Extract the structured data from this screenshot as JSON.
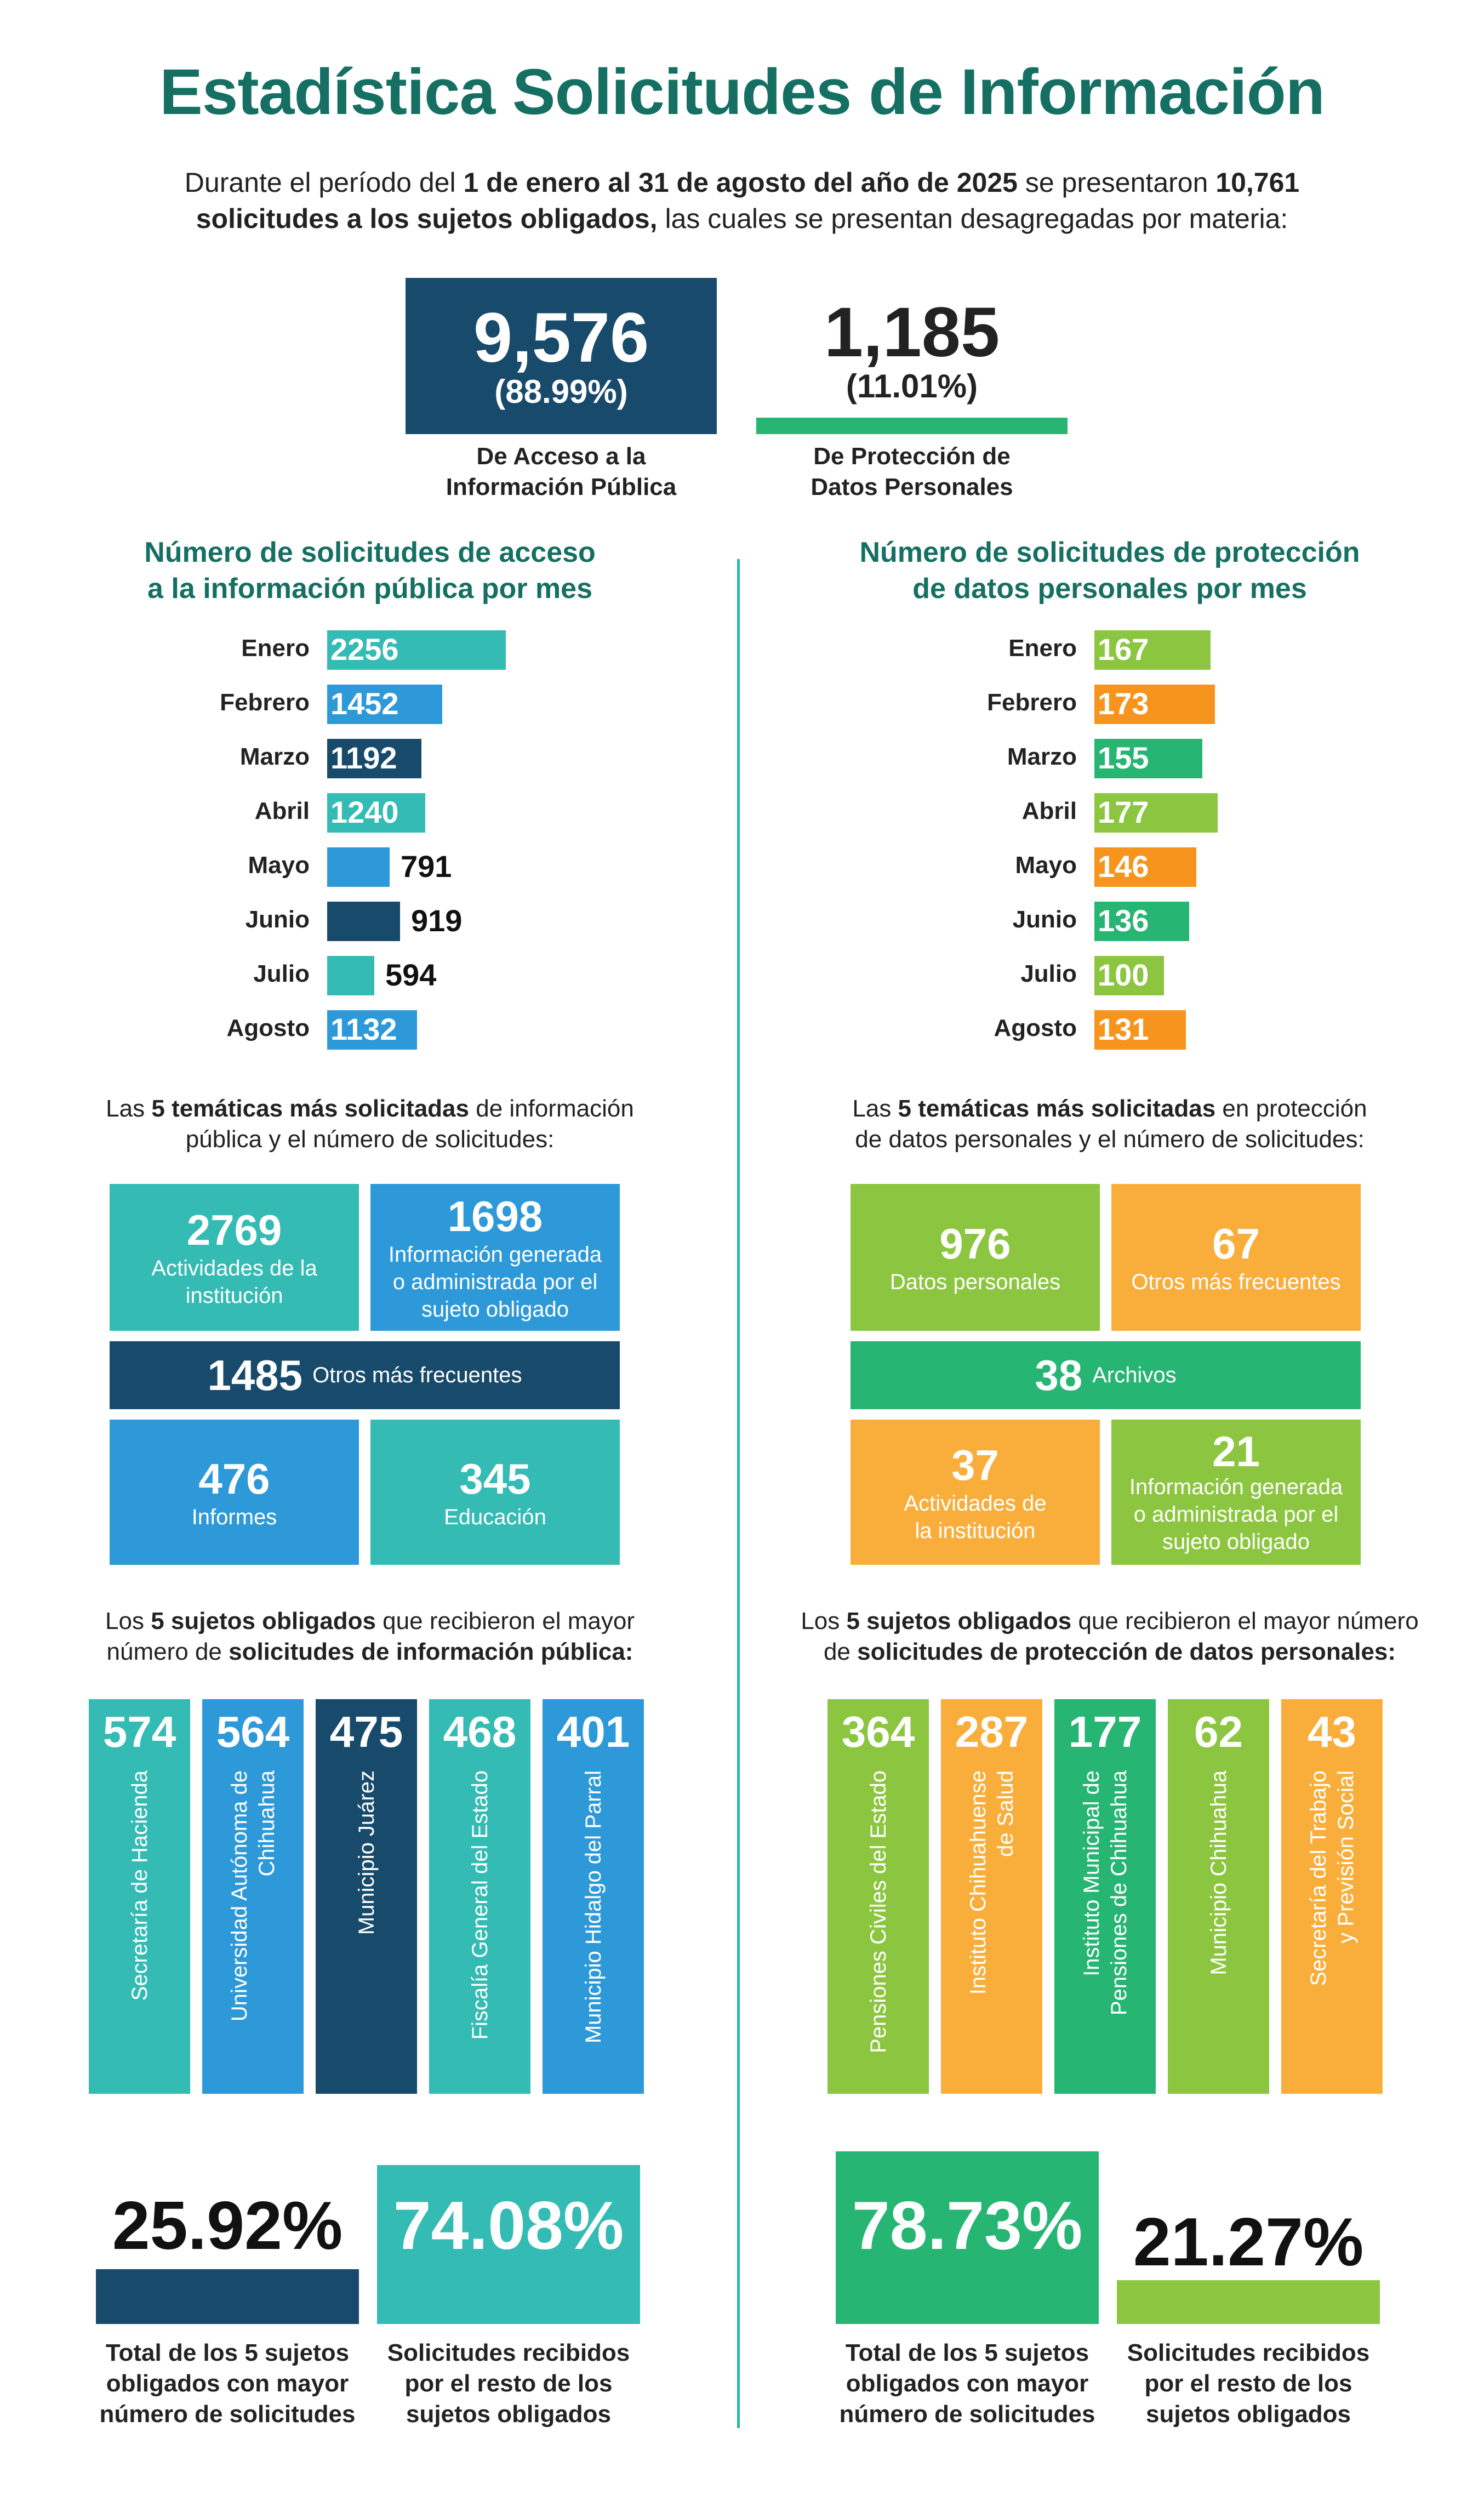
{
  "title": "Estadística Solicitudes de Información",
  "intro": {
    "p1": "Durante el período del ",
    "b1": "1 de enero al 31 de agosto del año de 2025",
    "p2": " se presentaron ",
    "b2": "10,761",
    "b3": "solicitudes a los sujetos obligados,",
    "p3": " las cuales se presentan desagregadas por materia:"
  },
  "totals": {
    "access": {
      "value": "9,576",
      "pct": "(88.99%)",
      "label_l1": "De Acceso a la",
      "label_l2": "Información Pública",
      "color": "#174a6b"
    },
    "protection": {
      "value": "1,185",
      "pct": "(11.01%)",
      "label_l1": "De Protección de",
      "label_l2": "Datos Personales",
      "color": "#26b573"
    }
  },
  "access_monthly": {
    "title_l1": "Número de solicitudes de acceso",
    "title_l2": "a la información pública por mes"
  },
  "protection_monthly": {
    "title_l1": "Número de solicitudes de protección",
    "title_l2": "de datos personales por mes"
  },
  "chart_data": [
    {
      "type": "bar",
      "title": "Número de solicitudes de acceso a la información pública por mes",
      "categories": [
        "Enero",
        "Febrero",
        "Marzo",
        "Abril",
        "Mayo",
        "Junio",
        "Julio",
        "Agosto"
      ],
      "values": [
        2256,
        1452,
        1192,
        1240,
        791,
        919,
        594,
        1132
      ],
      "colors": [
        "#33bbb4",
        "#2e99d9",
        "#174a6b",
        "#33bbb4",
        "#2e99d9",
        "#174a6b",
        "#33bbb4",
        "#2e99d9"
      ],
      "orientation": "horizontal",
      "xlim": [
        0,
        2256
      ]
    },
    {
      "type": "bar",
      "title": "Número de solicitudes de protección de datos personales por mes",
      "categories": [
        "Enero",
        "Febrero",
        "Marzo",
        "Abril",
        "Mayo",
        "Junio",
        "Julio",
        "Agosto"
      ],
      "values": [
        167,
        173,
        155,
        177,
        146,
        136,
        100,
        131
      ],
      "colors": [
        "#8cc640",
        "#f7941e",
        "#26b573",
        "#8cc640",
        "#f7941e",
        "#26b573",
        "#8cc640",
        "#f7941e"
      ],
      "orientation": "horizontal",
      "xlim": [
        0,
        177
      ]
    }
  ],
  "access_topics": {
    "intro_pre": "Las ",
    "intro_bold": "5 temáticas más solicitadas",
    "intro_post": " de información pública y el número de solicitudes:",
    "tiles": [
      {
        "value": "2769",
        "label": "Actividades de la institución",
        "color": "#33bbb4"
      },
      {
        "value": "1698",
        "label": "Información generada o administrada por el sujeto obligado",
        "color": "#2e99d9"
      },
      {
        "value": "1485",
        "label": "Otros más frecuentes",
        "color": "#174a6b"
      },
      {
        "value": "476",
        "label": "Informes",
        "color": "#2e99d9"
      },
      {
        "value": "345",
        "label": "Educación",
        "color": "#33bbb4"
      }
    ]
  },
  "protection_topics": {
    "intro_pre": "Las ",
    "intro_bold": "5 temáticas más solicitadas",
    "intro_post": " en protección de datos personales y el número de solicitudes:",
    "tiles": [
      {
        "value": "976",
        "label": "Datos personales",
        "color": "#8cc640"
      },
      {
        "value": "67",
        "label": "Otros más frecuentes",
        "color": "#f9ae3c"
      },
      {
        "value": "38",
        "label": "Archivos",
        "color": "#26b573"
      },
      {
        "value": "37",
        "label": "Actividades de la institución",
        "color": "#f9ae3c"
      },
      {
        "value": "21",
        "label": "Información generada o administrada por el sujeto obligado",
        "color": "#8cc640"
      }
    ]
  },
  "access_entities": {
    "intro_pre": "Los ",
    "intro_bold1": "5 sujetos obligados",
    "intro_mid": " que recibieron el mayor número de ",
    "intro_bold2": "solicitudes de información pública:",
    "items": [
      {
        "value": "574",
        "name_l1": "Secretaría de Hacienda",
        "name_l2": "",
        "color": "#33bbb4"
      },
      {
        "value": "564",
        "name_l1": "Universidad Autónoma de",
        "name_l2": "Chihuahua",
        "color": "#2e99d9"
      },
      {
        "value": "475",
        "name_l1": "Municipio Juárez",
        "name_l2": "",
        "color": "#174a6b"
      },
      {
        "value": "468",
        "name_l1": "Fiscalía General del Estado",
        "name_l2": "",
        "color": "#33bbb4"
      },
      {
        "value": "401",
        "name_l1": "Municipio Hidalgo del Parral",
        "name_l2": "",
        "color": "#2e99d9"
      }
    ]
  },
  "protection_entities": {
    "intro_pre": "Los ",
    "intro_bold1": "5 sujetos obligados",
    "intro_mid": " que recibieron el mayor número de ",
    "intro_bold2": "solicitudes de protección de datos personales:",
    "items": [
      {
        "value": "364",
        "name_l1": "Pensiones Civiles del Estado",
        "name_l2": "",
        "color": "#8cc640"
      },
      {
        "value": "287",
        "name_l1": "Instituto Chihuahuense",
        "name_l2": "de Salud",
        "color": "#f9ae3c"
      },
      {
        "value": "177",
        "name_l1": "Instituto Municipal de",
        "name_l2": "Pensiones de Chihuahua",
        "color": "#26b573"
      },
      {
        "value": "62",
        "name_l1": "Municipio Chihuahua",
        "name_l2": "",
        "color": "#8cc640"
      },
      {
        "value": "43",
        "name_l1": "Secretaría del Trabajo",
        "name_l2": "y Previsión Social",
        "color": "#f9ae3c"
      }
    ]
  },
  "access_share": {
    "top5_pct": "25.92%",
    "top5_label_l1": "Total de los 5 sujetos",
    "top5_label_l2": "obligados con mayor",
    "top5_label_l3": "número de solicitudes",
    "rest_pct": "74.08%",
    "rest_label_l1": "Solicitudes recibidos",
    "rest_label_l2": "por el resto de los",
    "rest_label_l3": "sujetos obligados",
    "top5_color": "#174a6b",
    "rest_color": "#33bbb4"
  },
  "protection_share": {
    "top5_pct": "78.73%",
    "top5_label_l1": "Total de los 5 sujetos",
    "top5_label_l2": "obligados con mayor",
    "top5_label_l3": "número de solicitudes",
    "rest_pct": "21.27%",
    "rest_label_l1": "Solicitudes recibidos",
    "rest_label_l2": "por el resto de los",
    "rest_label_l3": "sujetos obligados",
    "top5_color": "#26b573",
    "rest_color": "#8cc640"
  }
}
